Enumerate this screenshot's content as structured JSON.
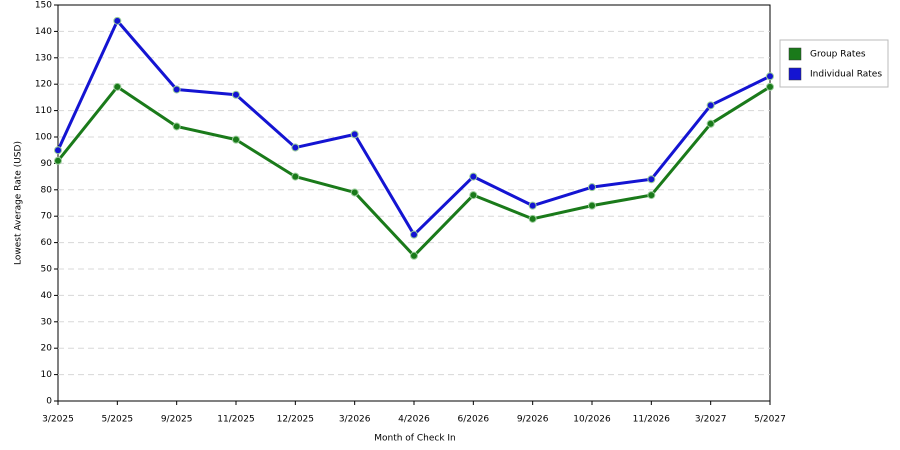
{
  "chart_data": {
    "type": "line",
    "x_label": "Month of Check In",
    "y_label": "Lowest Average Rate (USD)",
    "categories": [
      "3/2025",
      "5/2025",
      "9/2025",
      "11/2025",
      "12/2025",
      "3/2026",
      "4/2026",
      "6/2026",
      "9/2026",
      "10/2026",
      "11/2026",
      "3/2027",
      "5/2027"
    ],
    "series": [
      {
        "name": "Group Rates",
        "color": "#1a7a1a",
        "values": [
          91,
          119,
          104,
          99,
          85,
          79,
          55,
          78,
          69,
          74,
          78,
          105,
          119
        ]
      },
      {
        "name": "Individual Rates",
        "color": "#1414d2",
        "values": [
          95,
          144,
          118,
          116,
          96,
          101,
          63,
          85,
          74,
          81,
          84,
          112,
          123
        ]
      }
    ],
    "ylim": [
      0,
      150
    ],
    "yticks": [
      0,
      10,
      20,
      30,
      40,
      50,
      60,
      70,
      80,
      90,
      100,
      110,
      120,
      130,
      140,
      150
    ],
    "grid": true,
    "legend": "right"
  }
}
